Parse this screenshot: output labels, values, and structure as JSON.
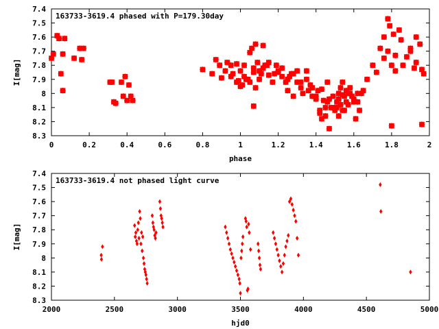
{
  "chart_data": [
    {
      "type": "scatter",
      "title": "163733-3619.4 phased with P=179.30day",
      "xlabel": "phase",
      "ylabel": "I[mag]",
      "xlim": [
        0,
        2
      ],
      "ylim": [
        8.3,
        7.4
      ],
      "y_inverted": true,
      "grid": false,
      "x_ticks": [
        "0",
        "0.2",
        "0.4",
        "0.6",
        "0.8",
        "1",
        "1.2",
        "1.4",
        "1.6",
        "1.8",
        "2"
      ],
      "x_tick_values": [
        0,
        0.2,
        0.4,
        0.6,
        0.8,
        1.0,
        1.2,
        1.4,
        1.6,
        1.8,
        2.0
      ],
      "y_ticks": [
        "7.4",
        "7.5",
        "7.6",
        "7.7",
        "7.8",
        "7.9",
        "8",
        "8.1",
        "8.2",
        "8.3"
      ],
      "y_tick_values": [
        7.4,
        7.5,
        7.6,
        7.7,
        7.8,
        7.9,
        8.0,
        8.1,
        8.2,
        8.3
      ],
      "marker_color": "#ff0000",
      "series": [
        {
          "x": [
            0.0,
            0.01,
            0.03,
            0.04,
            0.06,
            0.05,
            0.06,
            0.07,
            0.12,
            0.15,
            0.16,
            0.17,
            0.31,
            0.33,
            0.32,
            0.34,
            0.37,
            0.38,
            0.39,
            0.4,
            0.41,
            0.42,
            0.43,
            0.8,
            0.85,
            0.87,
            0.89,
            0.9,
            0.92,
            0.93,
            0.95,
            0.96,
            0.98,
            0.99,
            1.0,
            1.02,
            1.03,
            1.05,
            1.06,
            1.07,
            1.08,
            1.09,
            1.1,
            1.12,
            1.13,
            1.15,
            1.17,
            1.19,
            1.2,
            1.22,
            1.24,
            1.25,
            1.27,
            1.28,
            1.3,
            1.32,
            1.33,
            1.35,
            1.37,
            1.38,
            1.4,
            1.41,
            1.42,
            1.43,
            1.45,
            1.46,
            1.47,
            1.49,
            1.5,
            1.51,
            1.52,
            1.53,
            1.54,
            1.55,
            1.56,
            1.57,
            1.58,
            1.6,
            1.61,
            1.62,
            1.63,
            1.65,
            1.67,
            1.7,
            1.72,
            1.74,
            1.76,
            1.78,
            1.79,
            1.8,
            1.81,
            1.82,
            1.84,
            1.86,
            1.88,
            1.9,
            1.92,
            1.93,
            1.95,
            1.96,
            1.97,
            1.0,
            1.02,
            1.05,
            1.08,
            1.12,
            1.18,
            1.25,
            1.3,
            1.36,
            1.4,
            1.44,
            1.48,
            1.52,
            1.56,
            1.6,
            1.64,
            1.42,
            1.45,
            1.5,
            1.53,
            1.55,
            1.58,
            1.38,
            1.35,
            1.28,
            1.22,
            1.15,
            1.1,
            0.95,
            0.98,
            1.01,
            1.04,
            1.07,
            1.11,
            1.14,
            1.2,
            1.26,
            1.32,
            1.43,
            1.46,
            1.51,
            1.54,
            1.57,
            1.59,
            1.62,
            1.07,
            1.52,
            1.53,
            1.54,
            1.47,
            1.78,
            1.8,
            1.82,
            1.76,
            1.85,
            1.9,
            1.93,
            1.96
          ],
          "y": [
            7.75,
            7.72,
            7.59,
            7.61,
            7.72,
            7.86,
            7.98,
            7.61,
            7.75,
            7.68,
            7.76,
            7.68,
            7.92,
            8.06,
            7.92,
            8.07,
            7.92,
            8.02,
            7.88,
            8.05,
            7.94,
            8.02,
            8.05,
            7.83,
            7.86,
            7.76,
            7.8,
            7.89,
            7.84,
            7.78,
            7.8,
            7.86,
            7.79,
            7.91,
            7.84,
            7.8,
            7.9,
            7.71,
            7.68,
            7.85,
            7.65,
            7.78,
            7.9,
            7.66,
            7.8,
            7.87,
            7.92,
            7.8,
            7.84,
            7.88,
            7.92,
            7.98,
            7.86,
            8.02,
            7.84,
            7.96,
            8.0,
            7.84,
            7.94,
            8.02,
            8.04,
            7.98,
            8.12,
            8.18,
            8.1,
            7.92,
            8.04,
            8.02,
            8.1,
            8.06,
            8.0,
            8.08,
            7.92,
            8.12,
            8.06,
            8.0,
            7.96,
            8.06,
            8.18,
            8.0,
            8.12,
            7.98,
            7.9,
            7.8,
            7.85,
            7.68,
            7.6,
            7.47,
            7.52,
            8.23,
            7.58,
            7.73,
            7.55,
            7.8,
            7.74,
            7.68,
            7.82,
            7.78,
            7.65,
            8.22,
            7.86,
            7.95,
            7.88,
            7.92,
            7.96,
            7.82,
            7.86,
            7.9,
            7.92,
            7.98,
            8.02,
            8.05,
            8.1,
            8.04,
            7.98,
            8.04,
            8.0,
            8.14,
            8.16,
            8.12,
            8.08,
            8.02,
            8.0,
            7.96,
            7.9,
            7.86,
            7.82,
            7.78,
            7.84,
            7.88,
            7.92,
            7.94,
            7.9,
            7.82,
            7.86,
            7.8,
            7.85,
            7.88,
            7.92,
            7.97,
            8.06,
            8.1,
            8.12,
            8.08,
            8.02,
            8.06,
            8.09,
            8.16,
            7.96,
            8.01,
            8.25,
            7.7,
            7.8,
            7.84,
            7.75,
            7.62,
            7.7,
            7.6,
            7.83
          ]
        }
      ]
    },
    {
      "type": "scatter",
      "title": "163733-3619.4 not phased light curve",
      "xlabel": "hjd0",
      "ylabel": "I[mag]",
      "xlim": [
        2000,
        5000
      ],
      "ylim": [
        8.3,
        7.4
      ],
      "y_inverted": true,
      "grid": false,
      "x_ticks": [
        "2000",
        "2500",
        "3000",
        "3500",
        "4000",
        "4500",
        "5000"
      ],
      "x_tick_values": [
        2000,
        2500,
        3000,
        3500,
        4000,
        4500,
        5000
      ],
      "y_ticks": [
        "7.4",
        "7.5",
        "7.6",
        "7.7",
        "7.8",
        "7.9",
        "8",
        "8.1",
        "8.2",
        "8.3"
      ],
      "y_tick_values": [
        7.4,
        7.5,
        7.6,
        7.7,
        7.8,
        7.9,
        8.0,
        8.1,
        8.2,
        8.3
      ],
      "marker_color": "#ff0000",
      "series": [
        {
          "x": [
            2395,
            2397,
            2405,
            2660,
            2665,
            2670,
            2675,
            2680,
            2685,
            2690,
            2695,
            2700,
            2705,
            2710,
            2715,
            2720,
            2725,
            2730,
            2735,
            2740,
            2745,
            2750,
            2755,
            2760,
            2800,
            2805,
            2810,
            2815,
            2820,
            2825,
            2830,
            2860,
            2865,
            2870,
            2875,
            2880,
            2885,
            3380,
            3390,
            3400,
            3410,
            3420,
            3430,
            3440,
            3450,
            3460,
            3470,
            3480,
            3490,
            3495,
            3500,
            3505,
            3510,
            3515,
            3520,
            3540,
            3545,
            3550,
            3555,
            3560,
            3565,
            3570,
            3580,
            3640,
            3645,
            3650,
            3655,
            3660,
            3760,
            3770,
            3780,
            3790,
            3800,
            3810,
            3820,
            3830,
            3840,
            3850,
            3860,
            3870,
            3880,
            3890,
            3900,
            3910,
            3920,
            3930,
            3940,
            3950,
            3960,
            4610,
            4615,
            4850
          ],
          "y": [
            7.98,
            8.01,
            7.92,
            7.77,
            7.85,
            7.82,
            7.88,
            7.9,
            7.8,
            7.75,
            7.86,
            7.67,
            7.72,
            7.9,
            7.82,
            7.95,
            7.85,
            8.0,
            8.04,
            8.08,
            8.1,
            8.12,
            8.15,
            8.18,
            7.7,
            7.75,
            7.78,
            7.8,
            7.84,
            7.86,
            7.82,
            7.6,
            7.65,
            7.7,
            7.72,
            7.75,
            7.78,
            7.78,
            7.82,
            7.86,
            7.9,
            7.94,
            7.97,
            8.0,
            8.03,
            8.06,
            8.09,
            8.12,
            8.15,
            8.18,
            8.25,
            8.0,
            7.95,
            7.9,
            7.85,
            7.72,
            7.74,
            7.78,
            8.23,
            8.22,
            7.76,
            7.82,
            7.94,
            7.9,
            7.95,
            8.0,
            8.05,
            8.08,
            7.82,
            7.86,
            7.9,
            7.94,
            7.98,
            8.02,
            8.06,
            8.1,
            8.04,
            7.98,
            7.92,
            7.88,
            7.84,
            7.6,
            7.58,
            7.62,
            7.66,
            7.7,
            7.74,
            7.86,
            7.98,
            7.48,
            7.67,
            8.1
          ]
        }
      ]
    }
  ]
}
